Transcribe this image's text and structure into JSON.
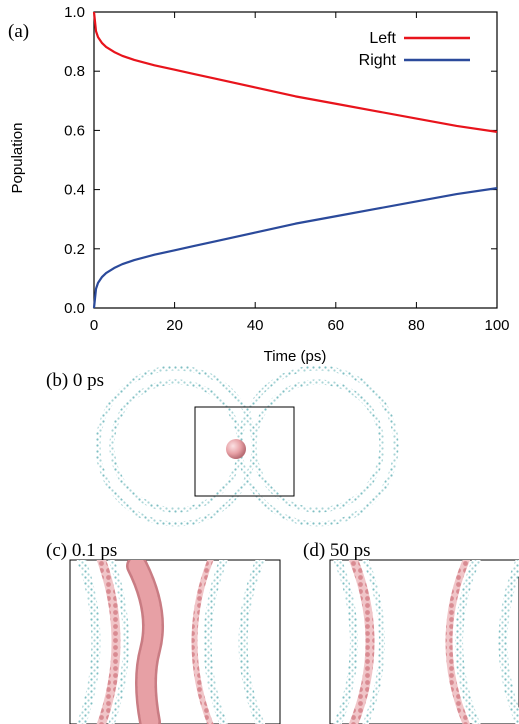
{
  "panels": {
    "a": {
      "label": "(a)"
    },
    "b": {
      "label": "(b) 0 ps"
    },
    "c": {
      "label": "(c) 0.1 ps"
    },
    "d": {
      "label": "(d) 50 ps"
    }
  },
  "chart_data": {
    "type": "line",
    "xlabel": "Time (ps)",
    "ylabel": "Population",
    "xlim": [
      0,
      100
    ],
    "ylim": [
      0.0,
      1.0
    ],
    "x_ticks": [
      "0",
      "20",
      "40",
      "60",
      "80",
      "100"
    ],
    "y_ticks": [
      "0.0",
      "0.2",
      "0.4",
      "0.6",
      "0.8",
      "1.0"
    ],
    "grid": false,
    "legend": "top-right",
    "x": [
      0,
      0.5,
      1,
      2,
      3,
      5,
      7,
      10,
      15,
      20,
      25,
      30,
      40,
      50,
      60,
      70,
      80,
      90,
      100
    ],
    "series": [
      {
        "name": "Left",
        "color": "#e8141c",
        "values": [
          1.0,
          0.935,
          0.915,
          0.895,
          0.882,
          0.865,
          0.852,
          0.838,
          0.82,
          0.805,
          0.79,
          0.775,
          0.745,
          0.715,
          0.69,
          0.665,
          0.64,
          0.615,
          0.595
        ]
      },
      {
        "name": "Right",
        "color": "#2b4a9b",
        "values": [
          0.0,
          0.065,
          0.085,
          0.105,
          0.118,
          0.135,
          0.148,
          0.162,
          0.18,
          0.195,
          0.21,
          0.225,
          0.255,
          0.285,
          0.31,
          0.335,
          0.36,
          0.385,
          0.405
        ]
      }
    ]
  },
  "colors": {
    "ring": "#8fc6c9",
    "ring_atom": "#9ecfd2",
    "molecule": "#e7a0a5",
    "molecule_dark": "#c97c83",
    "wall_pink": "#d98b92"
  }
}
